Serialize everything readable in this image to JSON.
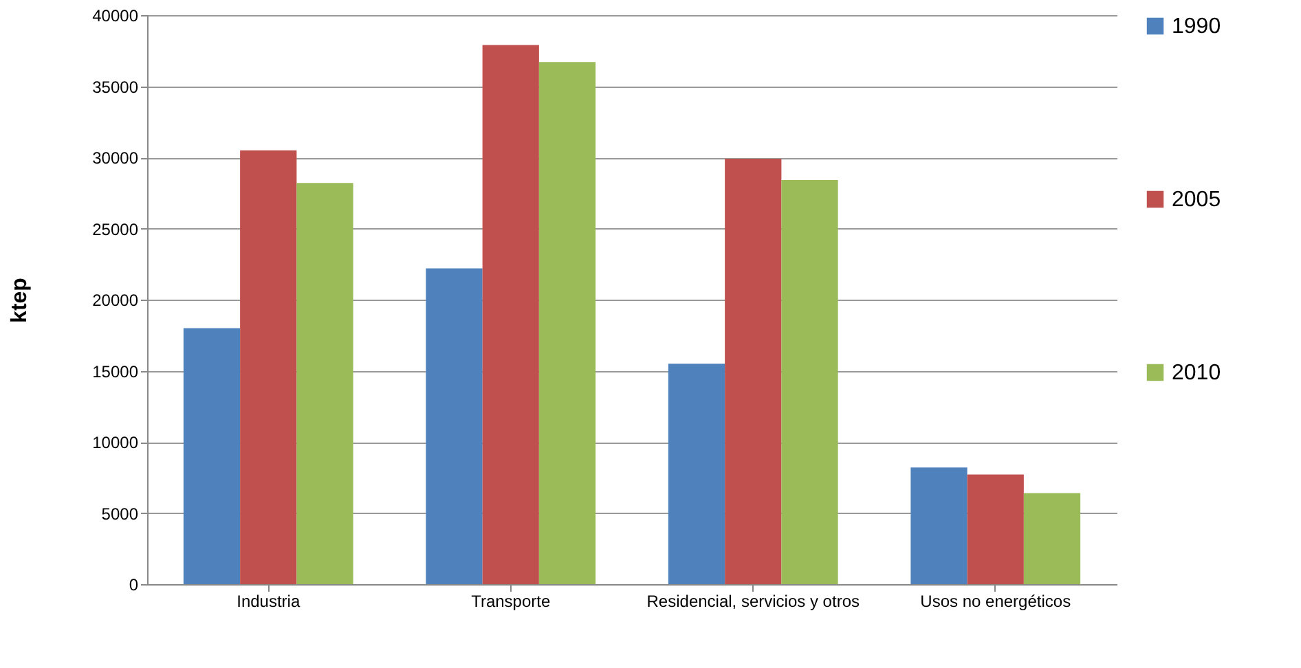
{
  "chart_data": {
    "type": "bar",
    "ylabel": "ktep",
    "categories": [
      "Industria",
      "Transporte",
      "Residencial, servicios y otros",
      "Usos no energéticos"
    ],
    "series": [
      {
        "name": "1990",
        "color": "#4f81bd",
        "values": [
          18000,
          22200,
          15500,
          8200
        ]
      },
      {
        "name": "2005",
        "color": "#c0504d",
        "values": [
          30500,
          37900,
          29900,
          7700
        ]
      },
      {
        "name": "2010",
        "color": "#9bbb59",
        "values": [
          28200,
          36700,
          28400,
          6400
        ]
      }
    ],
    "ylim": [
      0,
      40000
    ],
    "yticks": [
      0,
      5000,
      10000,
      15000,
      20000,
      25000,
      30000,
      35000,
      40000
    ],
    "grid": "y",
    "legend": "right"
  }
}
